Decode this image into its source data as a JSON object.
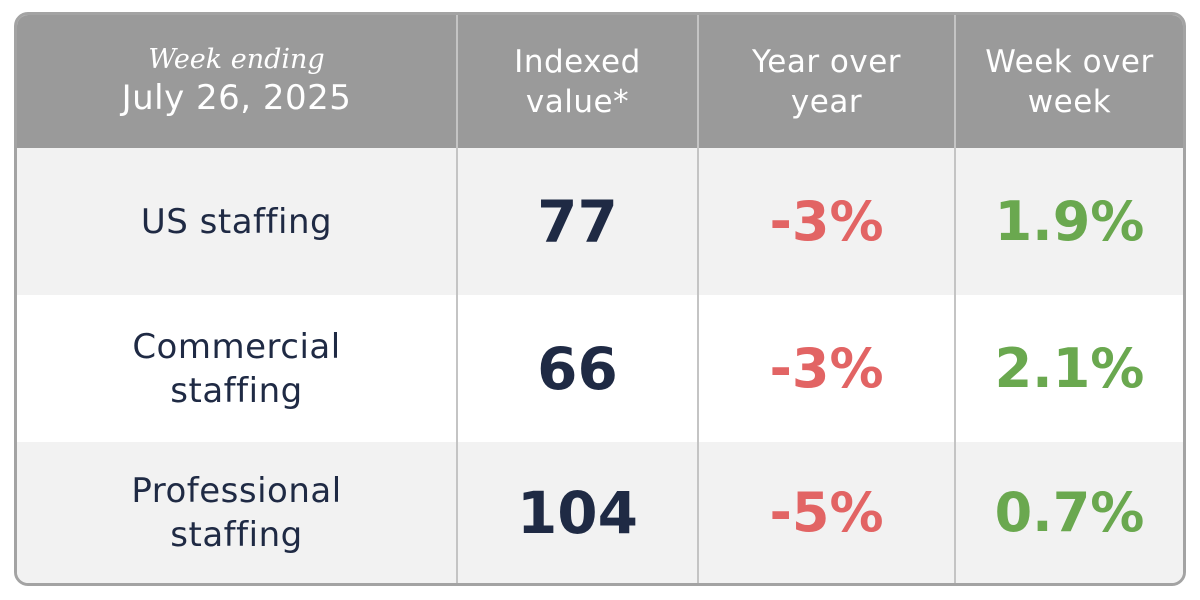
{
  "header": {
    "week_label": "Week ending",
    "date": "July 26, 2025",
    "indexed": [
      "Indexed",
      "value*"
    ],
    "yoy": [
      "Year over",
      "year"
    ],
    "wow": [
      "Week over",
      "week"
    ]
  },
  "rows": [
    {
      "label": [
        "US staffing"
      ],
      "index": "77",
      "yoy": "-3%",
      "wow": "1.9%"
    },
    {
      "label": [
        "Commercial",
        "staffing"
      ],
      "index": "66",
      "yoy": "-3%",
      "wow": "2.1%"
    },
    {
      "label": [
        "Professional",
        "staffing"
      ],
      "index": "104",
      "yoy": "-5%",
      "wow": "0.7%"
    }
  ],
  "colors": {
    "header_bg": "#9a9a9a",
    "text_dark": "#1f2a44",
    "negative": "#e26464",
    "positive": "#6aa84f",
    "alt_row": "#f2f2f2"
  }
}
